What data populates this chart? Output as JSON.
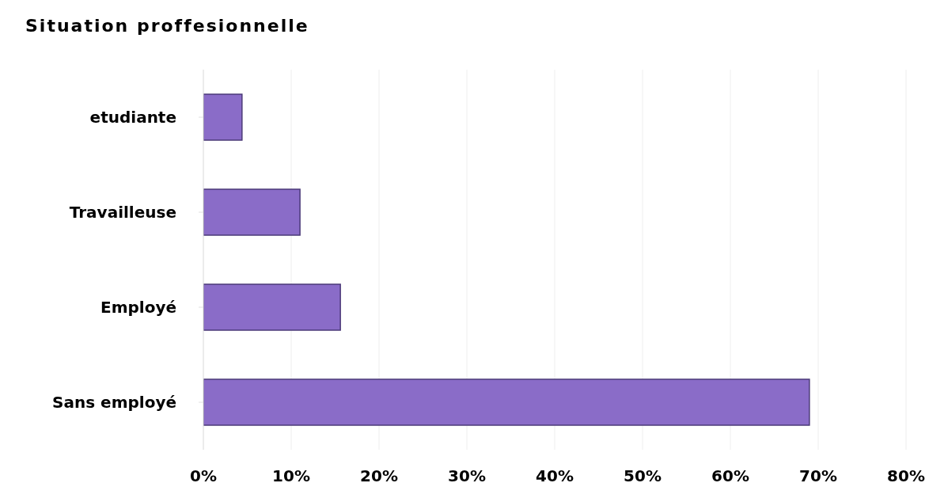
{
  "chart_data": {
    "type": "bar",
    "title": "Situation proffesionnelle",
    "orientation": "horizontal",
    "categories": [
      "etudiante",
      "Travailleuse",
      "Employé",
      "Sans employé"
    ],
    "values": [
      4.4,
      11,
      15.6,
      69
    ],
    "color": "#8a6cc8",
    "xlim": [
      0,
      80
    ],
    "xticks": [
      {
        "value": 0,
        "label": "0%"
      },
      {
        "value": 10,
        "label": "10%"
      },
      {
        "value": 20,
        "label": "20%"
      },
      {
        "value": 30,
        "label": "30%"
      },
      {
        "value": 40,
        "label": "40%"
      },
      {
        "value": 50,
        "label": "50%"
      },
      {
        "value": 60,
        "label": "60%"
      },
      {
        "value": 70,
        "label": "70%"
      },
      {
        "value": 80,
        "label": "80%"
      }
    ],
    "grid": "x"
  }
}
